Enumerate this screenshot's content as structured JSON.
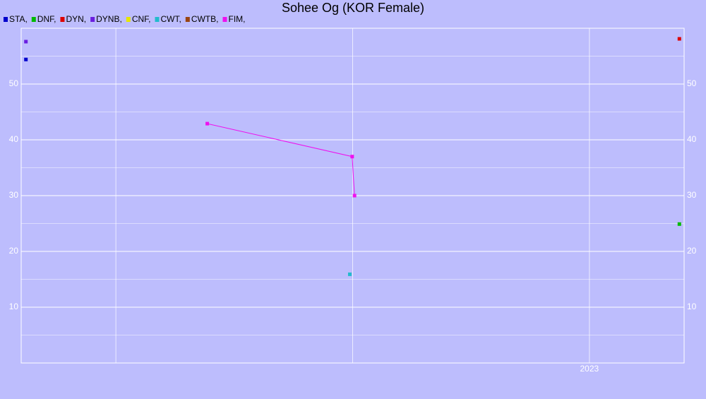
{
  "chart_data": {
    "type": "scatter",
    "title": "Sohee Og (KOR Female)",
    "xlim": [
      2021.8,
      2023.2
    ],
    "xticks": [
      2023
    ],
    "xgrid": [
      2022,
      2022.5,
      2023
    ],
    "ylim": [
      0,
      60
    ],
    "yticks": [
      10,
      20,
      30,
      40,
      50
    ],
    "yminor": [
      5,
      15,
      25,
      35,
      45,
      55
    ],
    "grid": true,
    "background": "#bdbdfd",
    "grid_color": "#ffffff",
    "series": [
      {
        "name": "STA,",
        "color": "#0000cc",
        "x": [
          2021.81
        ],
        "values": [
          54.4
        ]
      },
      {
        "name": "DNF,",
        "color": "#00bb00",
        "x": [
          2023.19
        ],
        "values": [
          24.9
        ]
      },
      {
        "name": "DYN,",
        "color": "#dd0000",
        "x": [
          2023.19
        ],
        "values": [
          58.1
        ]
      },
      {
        "name": "DYNB,",
        "color": "#6a1de0",
        "x": [
          2021.81
        ],
        "values": [
          57.6
        ]
      },
      {
        "name": "CNF,",
        "color": "#e6e600",
        "x": [],
        "values": []
      },
      {
        "name": "CWT,",
        "color": "#22bbcc",
        "x": [
          2022.494
        ],
        "values": [
          15.9
        ]
      },
      {
        "name": "CWTB,",
        "color": "#994411",
        "x": [],
        "values": []
      },
      {
        "name": "FIM,",
        "color": "#ee11ee",
        "x": [
          2022.193,
          2022.499,
          2022.504
        ],
        "values": [
          42.9,
          37.0,
          30.0
        ]
      }
    ]
  }
}
